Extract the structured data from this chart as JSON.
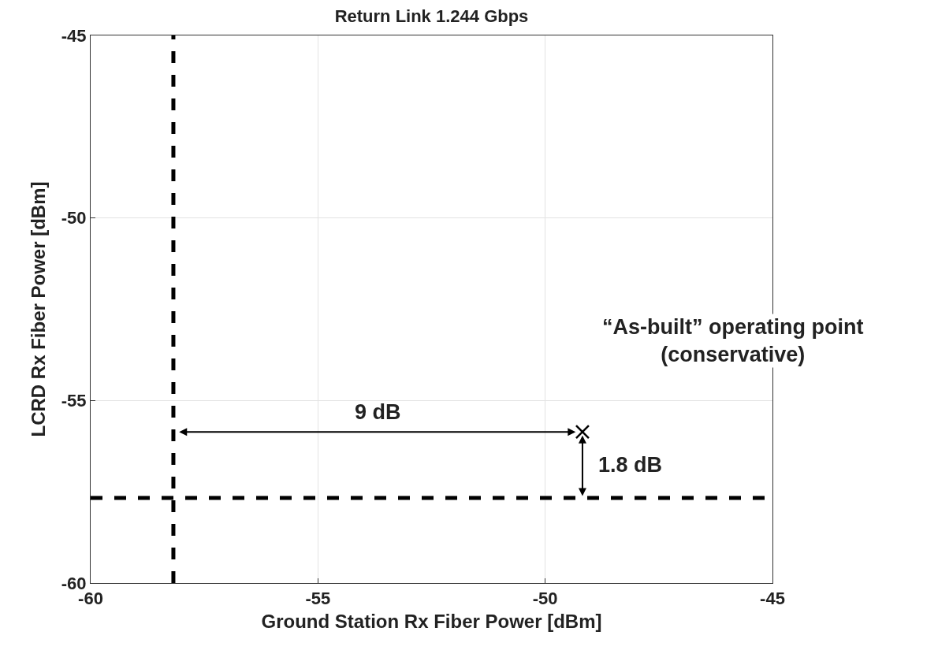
{
  "chart_data": {
    "type": "scatter",
    "title": "Return Link 1.244 Gbps",
    "xlabel": "Ground Station Rx Fiber Power [dBm]",
    "ylabel": "LCRD Rx Fiber Power [dBm]",
    "x": [
      -49.18
    ],
    "values": [
      -55.86
    ],
    "color": "#000000",
    "marker": "cross",
    "xlim": [
      -60,
      -45
    ],
    "xticks": [
      -60,
      -55,
      -50,
      -45
    ],
    "ylim": [
      -60,
      -45
    ],
    "yticks": [
      -60,
      -55,
      -50,
      -45
    ],
    "grid": true,
    "ref_lines": [
      {
        "axis": "x",
        "value": -58.18,
        "color": "#000000",
        "line_style": "dashed"
      },
      {
        "axis": "y",
        "value": -57.67,
        "color": "#000000",
        "line_style": "dashed"
      }
    ],
    "annotations": [
      "9 dB",
      "1.8 dB",
      "“As-built” operating point\n(conservative)"
    ]
  }
}
